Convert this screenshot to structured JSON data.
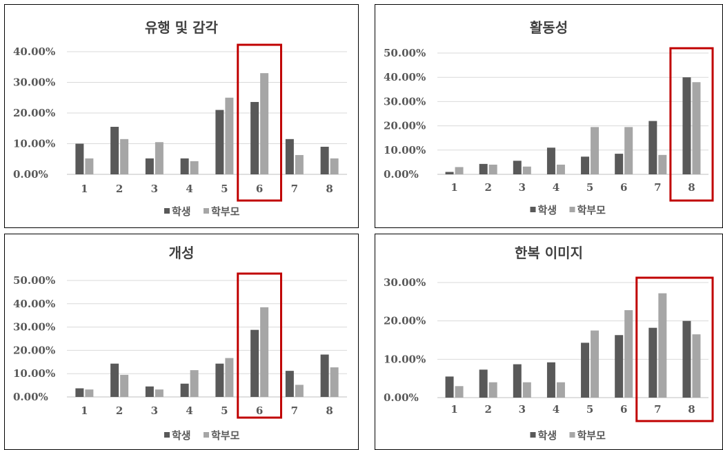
{
  "chart_data": [
    {
      "type": "bar",
      "title": "유행 및 감각",
      "categories": [
        "1",
        "2",
        "3",
        "4",
        "5",
        "6",
        "7",
        "8"
      ],
      "yticks": [
        "0.00%",
        "10.00%",
        "20.00%",
        "30.00%",
        "40.00%"
      ],
      "ylim": [
        0,
        40
      ],
      "series": [
        {
          "name": "학생",
          "color": "#595959",
          "values": [
            10,
            15.5,
            5.2,
            5.2,
            21,
            23.6,
            11.5,
            9
          ]
        },
        {
          "name": "학부모",
          "color": "#a6a6a6",
          "values": [
            5.2,
            11.5,
            10.5,
            4.3,
            25,
            33,
            6.3,
            5.2
          ]
        }
      ],
      "highlight": [
        "6"
      ],
      "highlight_color": "#c00000",
      "grid": true,
      "legend": "bottom"
    },
    {
      "type": "bar",
      "title": "활동성",
      "categories": [
        "1",
        "2",
        "3",
        "4",
        "5",
        "6",
        "7",
        "8"
      ],
      "yticks": [
        "0.00%",
        "10.00%",
        "20.00%",
        "30.00%",
        "40.00%",
        "50.00%"
      ],
      "ylim": [
        0,
        50
      ],
      "series": [
        {
          "name": "학생",
          "color": "#595959",
          "values": [
            1,
            4.3,
            5.6,
            11,
            7.3,
            8.5,
            22,
            40
          ]
        },
        {
          "name": "학부모",
          "color": "#a6a6a6",
          "values": [
            3,
            4,
            3.2,
            4,
            19.5,
            19.5,
            8,
            38
          ]
        }
      ],
      "highlight": [
        "8"
      ],
      "highlight_color": "#c00000",
      "grid": true,
      "legend": "bottom"
    },
    {
      "type": "bar",
      "title": "개성",
      "categories": [
        "1",
        "2",
        "3",
        "4",
        "5",
        "6",
        "7",
        "8"
      ],
      "yticks": [
        "0.00%",
        "10.00%",
        "20.00%",
        "30.00%",
        "40.00%",
        "50.00%"
      ],
      "ylim": [
        0,
        50
      ],
      "series": [
        {
          "name": "학생",
          "color": "#595959",
          "values": [
            3.7,
            14.3,
            4.5,
            5.7,
            14.3,
            28.8,
            11.2,
            18.2
          ]
        },
        {
          "name": "학부모",
          "color": "#a6a6a6",
          "values": [
            3.2,
            9.5,
            3.2,
            11.5,
            16.7,
            38.5,
            5.2,
            12.7
          ]
        }
      ],
      "highlight": [
        "6"
      ],
      "highlight_color": "#c00000",
      "grid": true,
      "legend": "bottom"
    },
    {
      "type": "bar",
      "title": "한복 이미지",
      "categories": [
        "1",
        "2",
        "3",
        "4",
        "5",
        "6",
        "7",
        "8"
      ],
      "yticks": [
        "0.00%",
        "10.00%",
        "20.00%",
        "30.00%"
      ],
      "ylim": [
        0,
        30
      ],
      "series": [
        {
          "name": "학생",
          "color": "#595959",
          "values": [
            5.5,
            7.3,
            8.7,
            9.2,
            14.3,
            16.3,
            18.2,
            20
          ]
        },
        {
          "name": "학부모",
          "color": "#a6a6a6",
          "values": [
            3,
            4,
            4,
            4,
            17.5,
            22.8,
            27.2,
            16.5
          ]
        }
      ],
      "highlight": [
        "7",
        "8"
      ],
      "highlight_color": "#c00000",
      "grid": true,
      "legend": "bottom"
    }
  ]
}
